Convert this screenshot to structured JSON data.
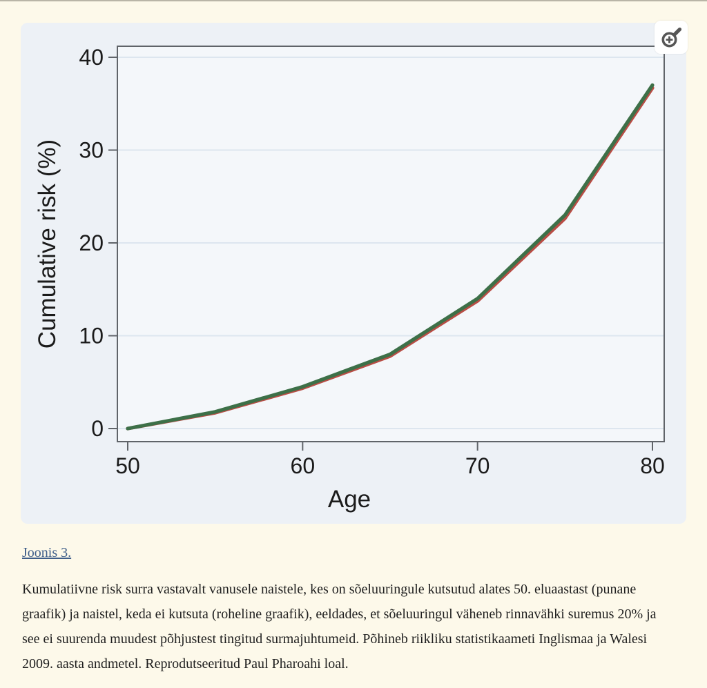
{
  "figure": {
    "zoom_button_label": "Suurenda joonist"
  },
  "chart_data": {
    "type": "line",
    "x": [
      50,
      55,
      60,
      65,
      70,
      75,
      80
    ],
    "series": [
      {
        "name": "punane graafik — sõeluuringule kutsutud alates 50. eluaastast",
        "color": "#b84d45",
        "values": [
          0,
          1.7,
          4.35,
          7.8,
          13.75,
          22.65,
          36.7
        ]
      },
      {
        "name": "roheline graafik — naised, keda ei kutsuta",
        "color": "#3d7048",
        "values": [
          0,
          1.8,
          4.5,
          8.0,
          14.0,
          23.0,
          37.0
        ]
      }
    ],
    "xlabel": "Age",
    "ylabel": "Cumulative risk (%)",
    "xticks": [
      50,
      60,
      70,
      80
    ],
    "yticks": [
      0,
      10,
      20,
      30,
      40
    ],
    "xlim": [
      49.4,
      80.7
    ],
    "ylim": [
      -1.4,
      41.2
    ],
    "grid": "horizontal",
    "legend": "none",
    "colors": {
      "plot_bg": "#f4f7fa",
      "grid_color": "#dde6ef",
      "frame_color": "#606469",
      "text_color": "#1b1b1b"
    }
  },
  "caption": {
    "link_label": "Joonis 3.",
    "text": "Kumulatiivne risk surra vastavalt vanusele naistele, kes on sõeluuringule kutsutud alates 50. eluaastast (punane graafik) ja naistel, keda ei kutsuta (roheline graafik), eeldades, et sõeluuringul väheneb rinnavähki suremus 20% ja see ei suurenda muudest põhjustest tingitud surmajuhtumeid. Põhineb riikliku statistikaameti Inglismaa ja Walesi 2009. aasta andmetel. Reprodutseeritud Paul Pharoahi loal."
  }
}
